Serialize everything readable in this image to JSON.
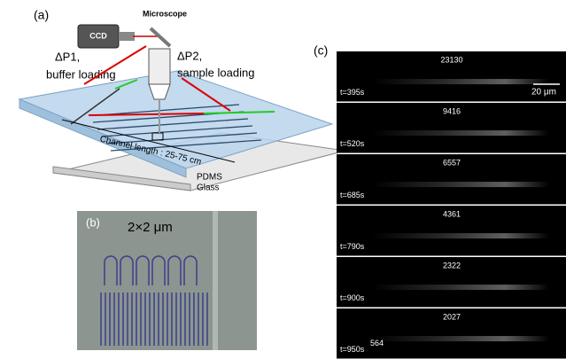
{
  "panel_a": {
    "label": "(a)",
    "microscope": "Microscope",
    "ccd": "CCD",
    "dp1_line1": "ΔP1,",
    "dp1_line2": "buffer loading",
    "dp2_line1": "ΔP2,",
    "dp2_line2": "sample loading",
    "channel_length": "Channel length : 25-75 cm",
    "pdms": "PDMS",
    "glass": "Glass"
  },
  "panel_b": {
    "label": "(b)",
    "size": "2×2 μm"
  },
  "panel_c": {
    "label": "(c)",
    "scale_bar": "20 μm",
    "extra_label": "564",
    "frames": [
      {
        "count": "23130",
        "time": "t=395s"
      },
      {
        "count": "9416",
        "time": "t=520s"
      },
      {
        "count": "6557",
        "time": "t=685s"
      },
      {
        "count": "4361",
        "time": "t=790s"
      },
      {
        "count": "2322",
        "time": "t=900s"
      },
      {
        "count": "2027",
        "time": "t=950s"
      }
    ]
  }
}
